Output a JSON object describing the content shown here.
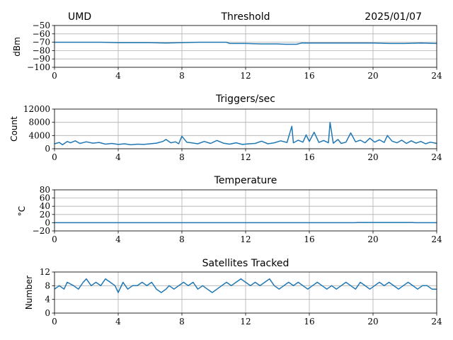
{
  "header": {
    "station": "UMD",
    "date": "2025/01/07"
  },
  "colors": {
    "series": "#1f77b4",
    "grid": "#b0b0b0"
  },
  "chart_data": [
    {
      "type": "line",
      "title": "Threshold",
      "ylabel": "dBm",
      "xlim": [
        0,
        24
      ],
      "ylim": [
        -100,
        -50
      ],
      "xticks": [
        "0",
        "4",
        "8",
        "12",
        "16",
        "20",
        "24"
      ],
      "yticks": [
        "−50",
        "−60",
        "−70",
        "−80",
        "−90",
        "−100"
      ],
      "ytick_values": [
        -50,
        -60,
        -70,
        -80,
        -90,
        -100
      ],
      "grid": true,
      "series": [
        {
          "x": [
            0,
            1,
            2,
            3,
            4,
            5,
            6,
            7,
            8,
            9,
            10,
            10.8,
            11,
            12,
            13,
            14,
            14.5,
            15.2,
            15.5,
            16,
            17,
            18,
            19,
            20,
            21,
            22,
            23,
            24
          ],
          "values": [
            -70,
            -70,
            -70,
            -70,
            -70.5,
            -70.5,
            -70.5,
            -71,
            -70.5,
            -70,
            -70,
            -70,
            -71.5,
            -71.5,
            -72,
            -72,
            -72.5,
            -72.5,
            -71,
            -71,
            -71,
            -71,
            -71,
            -71,
            -71.5,
            -71.5,
            -71,
            -71.5
          ]
        }
      ]
    },
    {
      "type": "line",
      "title": "Triggers/sec",
      "ylabel": "Count",
      "xlim": [
        0,
        24
      ],
      "ylim": [
        0,
        12000
      ],
      "xticks": [
        "0",
        "4",
        "8",
        "12",
        "16",
        "20",
        "24"
      ],
      "yticks": [
        "0",
        "4000",
        "8000",
        "12000"
      ],
      "ytick_values": [
        0,
        4000,
        8000,
        12000
      ],
      "grid": true,
      "series": [
        {
          "x": [
            0,
            0.3,
            0.5,
            0.8,
            1.0,
            1.3,
            1.6,
            2.0,
            2.4,
            2.8,
            3.2,
            3.6,
            4.0,
            4.4,
            4.8,
            5.2,
            5.6,
            6.0,
            6.4,
            6.8,
            7.0,
            7.3,
            7.6,
            7.8,
            8.0,
            8.3,
            8.6,
            9.0,
            9.4,
            9.8,
            10.2,
            10.6,
            11.0,
            11.4,
            11.8,
            12.2,
            12.6,
            13.0,
            13.4,
            13.8,
            14.2,
            14.6,
            14.9,
            15.0,
            15.3,
            15.6,
            15.8,
            16.0,
            16.3,
            16.6,
            16.9,
            17.2,
            17.3,
            17.5,
            17.8,
            18.0,
            18.3,
            18.6,
            18.9,
            19.2,
            19.5,
            19.8,
            20.1,
            20.4,
            20.7,
            20.9,
            21.2,
            21.5,
            21.8,
            22.1,
            22.4,
            22.7,
            23.0,
            23.3,
            23.6,
            24.0
          ],
          "values": [
            1500,
            1900,
            1200,
            2200,
            1800,
            2400,
            1600,
            2100,
            1700,
            1900,
            1400,
            1600,
            1300,
            1500,
            1200,
            1400,
            1300,
            1500,
            1700,
            2200,
            2800,
            1800,
            2100,
            1500,
            3800,
            2000,
            1800,
            1500,
            2200,
            1600,
            2500,
            1700,
            1400,
            1800,
            1300,
            1500,
            1600,
            2300,
            1500,
            1800,
            2400,
            1900,
            6800,
            1800,
            2600,
            2000,
            4200,
            2200,
            5000,
            1900,
            2500,
            1800,
            8000,
            1700,
            2800,
            1600,
            2000,
            4800,
            2100,
            2600,
            1800,
            3200,
            2000,
            2700,
            1900,
            4000,
            2300,
            1800,
            2600,
            1600,
            2400,
            1700,
            2200,
            1500,
            2000,
            1600
          ]
        }
      ]
    },
    {
      "type": "line",
      "title": "Temperature",
      "ylabel": "°C",
      "xlim": [
        0,
        24
      ],
      "ylim": [
        -20,
        80
      ],
      "xticks": [
        "0",
        "4",
        "8",
        "12",
        "16",
        "20",
        "24"
      ],
      "yticks": [
        "−20",
        "0",
        "20",
        "40",
        "60",
        "80"
      ],
      "ytick_values": [
        -20,
        0,
        20,
        40,
        60,
        80
      ],
      "grid": true,
      "series": [
        {
          "x": [
            0,
            4,
            8,
            12,
            16,
            18.9,
            19.0,
            22.5,
            22.6,
            24
          ],
          "values": [
            0,
            0,
            0,
            0,
            0,
            0,
            0.6,
            0.6,
            0,
            0
          ]
        }
      ]
    },
    {
      "type": "line",
      "title": "Satellites Tracked",
      "ylabel": "Number",
      "xlim": [
        0,
        24
      ],
      "ylim": [
        0,
        12
      ],
      "xticks": [
        "0",
        "4",
        "8",
        "12",
        "16",
        "20",
        "24"
      ],
      "yticks": [
        "0",
        "4",
        "8",
        "12"
      ],
      "ytick_values": [
        0,
        4,
        8,
        12
      ],
      "grid": true,
      "series": [
        {
          "x": [
            0,
            0.3,
            0.6,
            0.8,
            1.2,
            1.5,
            1.8,
            2.0,
            2.3,
            2.6,
            2.9,
            3.2,
            3.5,
            3.8,
            4.0,
            4.3,
            4.6,
            4.9,
            5.2,
            5.5,
            5.8,
            6.1,
            6.4,
            6.7,
            7.0,
            7.2,
            7.5,
            7.8,
            8.1,
            8.4,
            8.7,
            9.0,
            9.3,
            9.6,
            9.9,
            10.2,
            10.5,
            10.8,
            11.1,
            11.4,
            11.7,
            12.0,
            12.3,
            12.6,
            12.9,
            13.2,
            13.5,
            13.8,
            14.1,
            14.4,
            14.7,
            15.0,
            15.3,
            15.6,
            15.9,
            16.2,
            16.5,
            16.8,
            17.1,
            17.4,
            17.7,
            18.0,
            18.3,
            18.6,
            18.9,
            19.2,
            19.5,
            19.8,
            20.1,
            20.4,
            20.7,
            21.0,
            21.3,
            21.6,
            21.9,
            22.2,
            22.5,
            22.8,
            23.1,
            23.4,
            23.7,
            24.0
          ],
          "values": [
            7,
            8,
            7,
            9,
            8,
            7,
            9,
            10,
            8,
            9,
            8,
            10,
            9,
            8,
            6,
            9,
            7,
            8,
            8,
            9,
            8,
            9,
            7,
            6,
            7,
            8,
            7,
            8,
            9,
            8,
            9,
            7,
            8,
            7,
            6,
            7,
            8,
            9,
            8,
            9,
            10,
            9,
            8,
            9,
            8,
            9,
            10,
            8,
            7,
            8,
            9,
            8,
            9,
            8,
            7,
            8,
            9,
            8,
            7,
            8,
            7,
            8,
            9,
            8,
            7,
            9,
            8,
            7,
            8,
            9,
            8,
            9,
            8,
            7,
            8,
            9,
            8,
            7,
            8,
            8,
            7,
            7
          ]
        }
      ]
    }
  ]
}
